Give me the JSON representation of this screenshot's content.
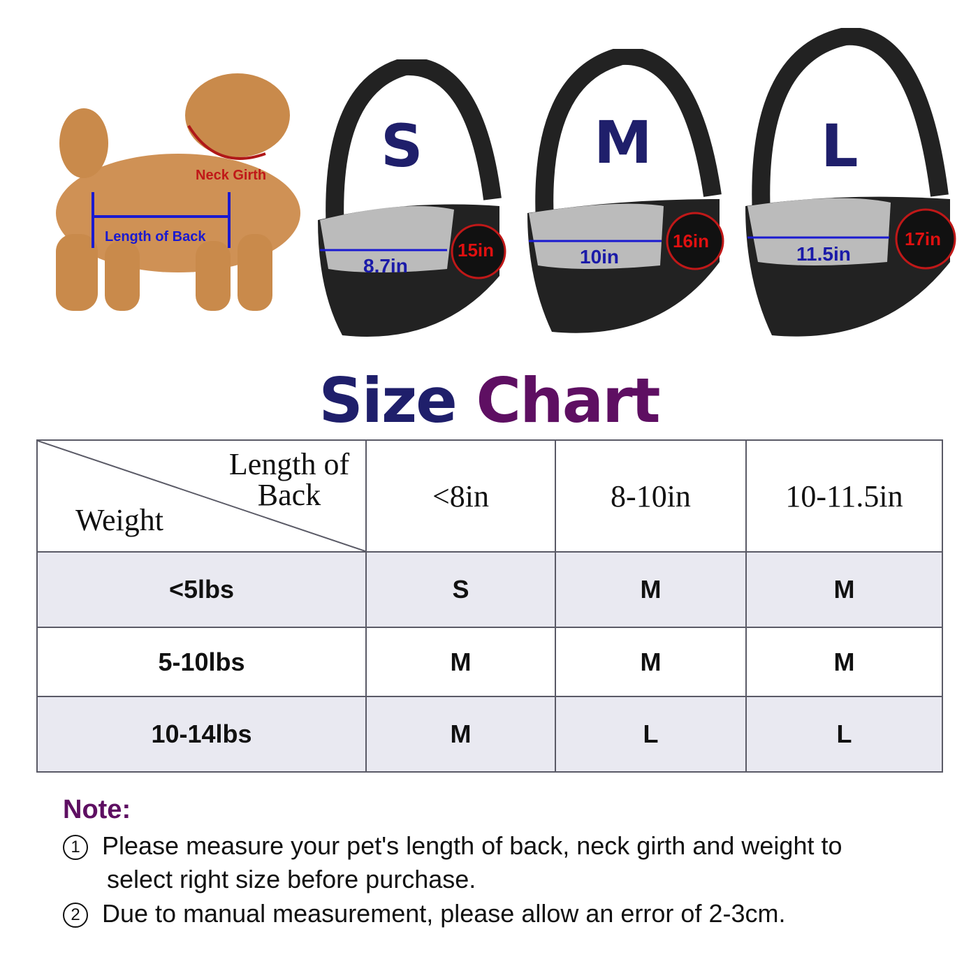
{
  "dog": {
    "neck_label": "Neck Girth",
    "back_label": "Length of Back"
  },
  "bags": [
    {
      "size": "S",
      "length": "8.7in",
      "neck": "15in"
    },
    {
      "size": "M",
      "length": "10in",
      "neck": "16in"
    },
    {
      "size": "L",
      "length": "11.5in",
      "neck": "17in"
    }
  ],
  "title": {
    "part1": "Size",
    "part2": "Chart",
    "color1": "#1f1f6b",
    "color2": "#5e0f62"
  },
  "table": {
    "corner_top": "Length of Back",
    "corner_bottom": "Weight",
    "columns": [
      "<8in",
      "8-10in",
      "10-11.5in"
    ],
    "rows": [
      {
        "weight": "<5lbs",
        "sizes": [
          "S",
          "M",
          "M"
        ]
      },
      {
        "weight": "5-10lbs",
        "sizes": [
          "M",
          "M",
          "M"
        ]
      },
      {
        "weight": "10-14lbs",
        "sizes": [
          "M",
          "L",
          "L"
        ]
      }
    ]
  },
  "note": {
    "title": "Note:",
    "items": [
      {
        "marker": "1",
        "text": "Please measure your pet's length of back, neck girth and weight to",
        "text2": "select right size before purchase."
      },
      {
        "marker": "2",
        "text": "Due to manual measurement, please allow an error of 2-3cm."
      }
    ]
  }
}
